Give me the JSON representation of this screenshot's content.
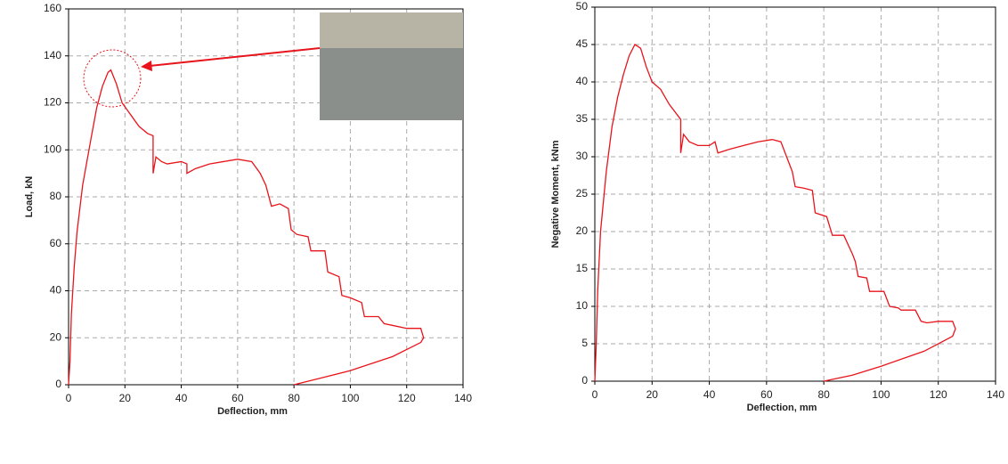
{
  "chart_data": [
    {
      "type": "line",
      "xlabel": "Deflection, mm",
      "ylabel": "Load, kN",
      "xlim": [
        0,
        140
      ],
      "xticks": [
        0,
        20,
        40,
        60,
        80,
        100,
        120,
        140
      ],
      "ylim": [
        0,
        160
      ],
      "yticks": [
        0,
        20,
        40,
        60,
        80,
        100,
        120,
        140,
        160
      ],
      "grid": true,
      "series": [
        {
          "name": null,
          "color": "#e8141b",
          "x": [
            0,
            0.5,
            1,
            2,
            3,
            5,
            8,
            10,
            12,
            14,
            15,
            17,
            19,
            22,
            25,
            28,
            30,
            30,
            31,
            33,
            35,
            40,
            42,
            42,
            45,
            50,
            55,
            60,
            65,
            68,
            70,
            72,
            75,
            78,
            79,
            81,
            85,
            86,
            91,
            92,
            96,
            97,
            100,
            104,
            105,
            110,
            112,
            116,
            120,
            125,
            126,
            125,
            115,
            100,
            90,
            80
          ],
          "values": [
            0,
            10,
            30,
            50,
            65,
            85,
            105,
            118,
            127,
            133,
            134,
            128,
            120,
            115,
            110,
            107,
            106,
            90,
            97,
            95,
            94,
            95,
            94,
            90,
            92,
            94,
            95,
            96,
            95,
            90,
            85,
            76,
            77,
            75,
            66,
            64,
            63,
            57,
            57,
            48,
            46,
            38,
            37,
            35,
            29,
            29,
            26,
            25,
            24,
            24,
            20,
            18,
            12,
            6,
            3,
            0
          ]
        }
      ]
    },
    {
      "type": "line",
      "xlabel": "Deflection, mm",
      "ylabel": "Negative Moment, kNm",
      "xlim": [
        0,
        140
      ],
      "xticks": [
        0,
        20,
        40,
        60,
        80,
        100,
        120,
        140
      ],
      "ylim": [
        0,
        50
      ],
      "yticks": [
        0,
        5,
        10,
        15,
        20,
        25,
        30,
        35,
        40,
        45,
        50
      ],
      "grid": true,
      "series": [
        {
          "name": null,
          "color": "#e8141b",
          "x": [
            0,
            0.5,
            1,
            2,
            4,
            6,
            8,
            10,
            12,
            14,
            16,
            18,
            20,
            23,
            26,
            29,
            30,
            30,
            31,
            33,
            36,
            40,
            42,
            43,
            47,
            52,
            57,
            62,
            65,
            67,
            69,
            70,
            73,
            76,
            77,
            81,
            83,
            87,
            90,
            91,
            92,
            95,
            96,
            101,
            103,
            106,
            107,
            112,
            114,
            116,
            120,
            125,
            126,
            125,
            115,
            100,
            90,
            80
          ],
          "values": [
            0,
            5,
            12,
            20,
            28,
            34,
            38,
            41,
            43.5,
            45,
            44.5,
            42,
            40,
            39,
            37,
            35.5,
            35,
            30.5,
            33,
            32,
            31.5,
            31.5,
            32,
            30.5,
            31,
            31.5,
            32,
            32.3,
            32,
            30,
            28,
            26,
            25.8,
            25.5,
            22.5,
            22,
            19.5,
            19.5,
            17,
            16,
            14,
            13.8,
            12,
            12,
            10,
            9.8,
            9.5,
            9.5,
            8,
            7.8,
            8,
            8,
            7,
            6,
            4,
            2,
            0.8,
            0
          ]
        }
      ]
    }
  ]
}
